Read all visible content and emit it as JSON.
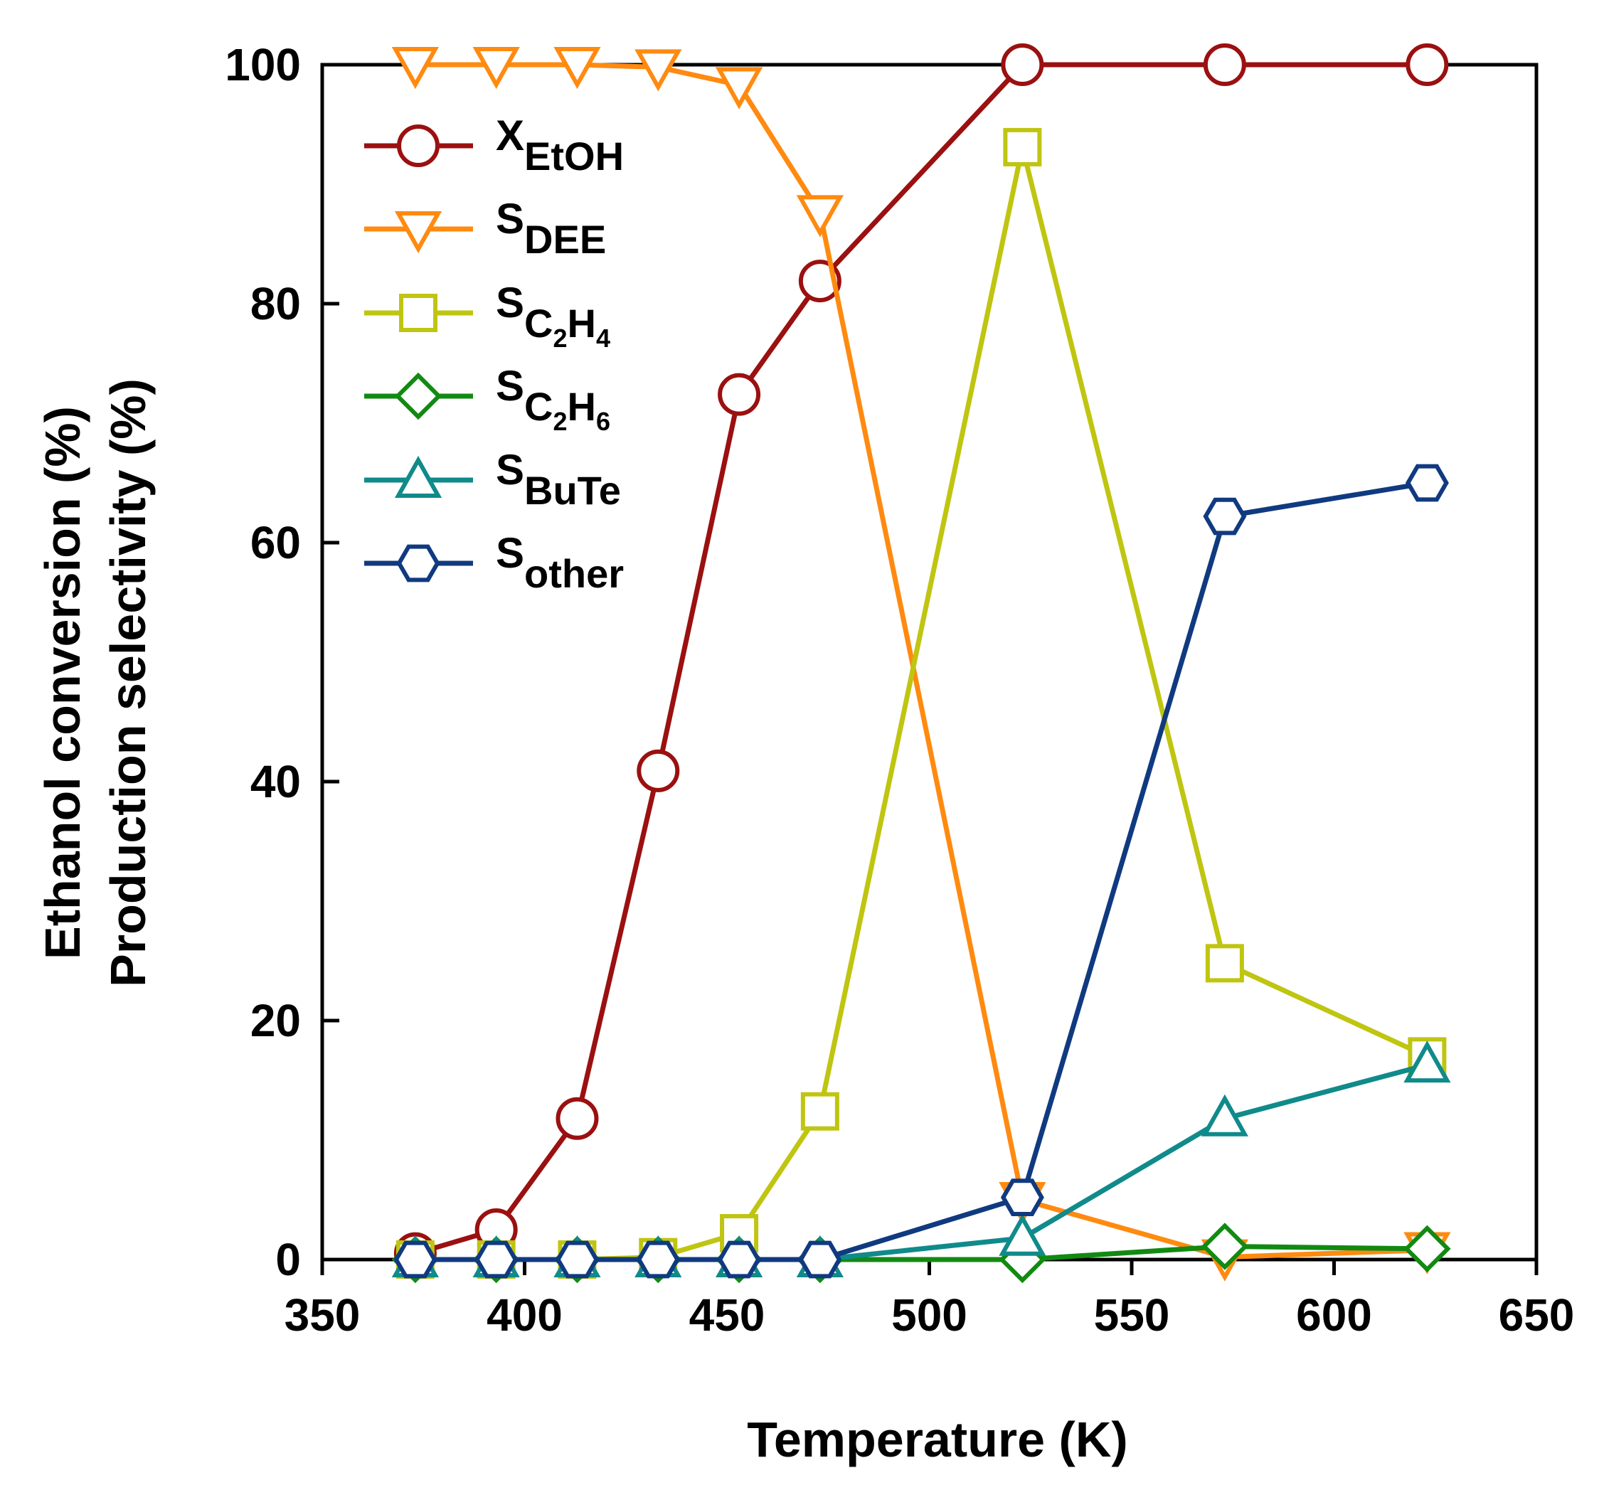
{
  "chart_data": {
    "type": "line",
    "xlabel": "Temperature (K)",
    "ylabel_lines": [
      "Ethanol conversion (%)",
      "Production selectivity (%)"
    ],
    "xlim": [
      350,
      650
    ],
    "ylim": [
      0,
      100
    ],
    "xticks": [
      350,
      400,
      450,
      500,
      550,
      600,
      650
    ],
    "yticks": [
      0,
      20,
      40,
      60,
      80,
      100
    ],
    "legend_position": "top-left",
    "series": [
      {
        "id": "x_etoh",
        "label_main": "X",
        "label_sub": "EtOH",
        "marker": "circle",
        "color": "#9B1010",
        "x": [
          373,
          393,
          413,
          433,
          453,
          473,
          523,
          573,
          623
        ],
        "y": [
          0.5,
          2.5,
          11.8,
          40.9,
          72.4,
          81.9,
          100,
          100,
          100
        ]
      },
      {
        "id": "s_dee",
        "label_main": "S",
        "label_sub": "DEE",
        "marker": "triangle-down",
        "color": "#FF8A10",
        "x": [
          373,
          393,
          413,
          433,
          453,
          473,
          523,
          573,
          623
        ],
        "y": [
          100,
          100,
          100,
          99.8,
          98.3,
          87.6,
          5.0,
          0.2,
          0.8
        ]
      },
      {
        "id": "s_c2h4",
        "label_main": "S",
        "label_sub": "C",
        "label_subsub": "2",
        "label_sub2": "H",
        "label_subsub2": "4",
        "marker": "square",
        "color": "#BFC510",
        "x": [
          373,
          393,
          413,
          433,
          453,
          473,
          523,
          573,
          623
        ],
        "y": [
          0,
          0,
          0,
          0.2,
          2.2,
          12.4,
          93.1,
          24.8,
          17.0
        ]
      },
      {
        "id": "s_c2h6",
        "label_main": "S",
        "label_sub": "C",
        "label_subsub": "2",
        "label_sub2": "H",
        "label_subsub2": "6",
        "marker": "diamond",
        "color": "#128A12",
        "x": [
          373,
          393,
          413,
          433,
          453,
          473,
          523,
          573,
          623
        ],
        "y": [
          0,
          0,
          0,
          0,
          0,
          0,
          0,
          1.1,
          0.9
        ]
      },
      {
        "id": "s_bute",
        "label_main": "S",
        "label_sub": "BuTe",
        "marker": "triangle-up",
        "color": "#108A8A",
        "x": [
          373,
          393,
          413,
          433,
          453,
          473,
          523,
          573,
          623
        ],
        "y": [
          0,
          0,
          0,
          0,
          0,
          0,
          1.8,
          11.8,
          16.3
        ]
      },
      {
        "id": "s_other",
        "label_main": "S",
        "label_sub": "other",
        "marker": "hexagon",
        "color": "#103A80",
        "x": [
          373,
          393,
          413,
          433,
          453,
          473,
          523,
          573,
          623
        ],
        "y": [
          0,
          0,
          0,
          0,
          0,
          0,
          5.2,
          62.2,
          65.0
        ]
      }
    ]
  }
}
